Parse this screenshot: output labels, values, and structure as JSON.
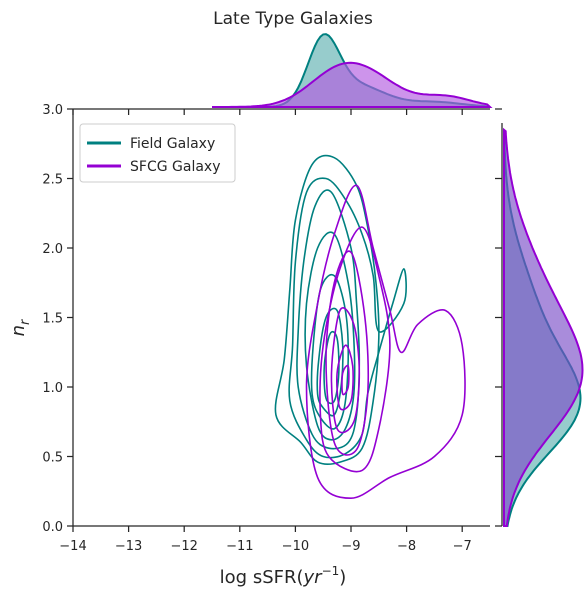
{
  "chart_data": {
    "type": "kde-joint",
    "title": "Late Type Galaxies",
    "xlabel_main": "log sSFR(",
    "xlabel_unit": "yr",
    "xlabel_exp": "−1",
    "xlabel_close": ")",
    "ylabel_base": "n",
    "ylabel_sub": "r",
    "xlim": [
      -14,
      -6.5
    ],
    "ylim": [
      0,
      3
    ],
    "xticks": [
      "−14",
      "−13",
      "−12",
      "−11",
      "−10",
      "−9",
      "−8",
      "−7"
    ],
    "xtick_values": [
      -14,
      -13,
      -12,
      -11,
      -10,
      -9,
      -8,
      -7
    ],
    "yticks": [
      "0.0",
      "0.5",
      "1.0",
      "1.5",
      "2.0",
      "2.5",
      "3.0"
    ],
    "ytick_values": [
      0,
      0.5,
      1,
      1.5,
      2,
      2.5,
      3
    ],
    "legend": {
      "placement": "upper-left",
      "entries": [
        "Field Galaxy",
        "SFCG Galaxy"
      ]
    },
    "colors": {
      "field": "#008080",
      "sfcg": "#9400D3",
      "field_fill": "#5fb0b0",
      "sfcg_fill": "#7b4fc8"
    },
    "series": [
      {
        "name": "Field Galaxy",
        "color": "#008080",
        "contours": [
          [
            [
              -9.9,
              0.6
            ],
            [
              -9.6,
              0.46
            ],
            [
              -9.2,
              0.46
            ],
            [
              -8.8,
              0.56
            ],
            [
              -8.6,
              0.9
            ],
            [
              -8.5,
              1.35
            ],
            [
              -8.55,
              1.75
            ],
            [
              -8.7,
              2.15
            ],
            [
              -8.9,
              2.45
            ],
            [
              -9.3,
              2.65
            ],
            [
              -9.7,
              2.6
            ],
            [
              -10,
              2.2
            ],
            [
              -10.1,
              1.7
            ],
            [
              -10.2,
              1.2
            ],
            [
              -10.35,
              0.8
            ]
          ],
          [
            [
              -9.8,
              0.62
            ],
            [
              -9.5,
              0.5
            ],
            [
              -9.1,
              0.52
            ],
            [
              -8.8,
              0.66
            ],
            [
              -8.7,
              0.95
            ],
            [
              -8.5,
              1.25
            ],
            [
              -8.25,
              1.6
            ],
            [
              -8.05,
              1.85
            ],
            [
              -8.05,
              1.6
            ],
            [
              -8.5,
              1.4
            ],
            [
              -8.6,
              1.8
            ],
            [
              -8.8,
              2.1
            ],
            [
              -9.1,
              2.35
            ],
            [
              -9.45,
              2.5
            ],
            [
              -9.8,
              2.4
            ],
            [
              -10,
              1.9
            ],
            [
              -10.05,
              1.3
            ],
            [
              -10.1,
              0.9
            ]
          ],
          [
            [
              -9.7,
              0.66
            ],
            [
              -9.4,
              0.56
            ],
            [
              -9.05,
              0.6
            ],
            [
              -8.9,
              0.8
            ],
            [
              -8.85,
              1.2
            ],
            [
              -8.9,
              1.6
            ],
            [
              -9,
              2
            ],
            [
              -9.35,
              2.4
            ],
            [
              -9.65,
              2.3
            ],
            [
              -9.85,
              1.9
            ],
            [
              -9.95,
              1.4
            ],
            [
              -9.95,
              1.0
            ]
          ],
          [
            [
              -9.6,
              0.72
            ],
            [
              -9.35,
              0.62
            ],
            [
              -9.1,
              0.7
            ],
            [
              -8.95,
              0.95
            ],
            [
              -8.95,
              1.35
            ],
            [
              -9.05,
              1.75
            ],
            [
              -9.3,
              2.1
            ],
            [
              -9.6,
              2.0
            ],
            [
              -9.8,
              1.6
            ],
            [
              -9.8,
              1.15
            ]
          ],
          [
            [
              -9.55,
              0.78
            ],
            [
              -9.3,
              0.7
            ],
            [
              -9.12,
              0.85
            ],
            [
              -9.05,
              1.2
            ],
            [
              -9.1,
              1.55
            ],
            [
              -9.3,
              1.8
            ],
            [
              -9.55,
              1.7
            ],
            [
              -9.68,
              1.3
            ],
            [
              -9.7,
              0.95
            ]
          ],
          [
            [
              -9.5,
              0.85
            ],
            [
              -9.3,
              0.8
            ],
            [
              -9.18,
              1.0
            ],
            [
              -9.15,
              1.3
            ],
            [
              -9.25,
              1.55
            ],
            [
              -9.45,
              1.5
            ],
            [
              -9.58,
              1.2
            ],
            [
              -9.6,
              0.95
            ]
          ],
          [
            [
              -9.45,
              0.92
            ],
            [
              -9.3,
              0.9
            ],
            [
              -9.22,
              1.1
            ],
            [
              -9.25,
              1.35
            ],
            [
              -9.38,
              1.38
            ],
            [
              -9.48,
              1.15
            ]
          ]
        ]
      },
      {
        "name": "SFCG Galaxy",
        "color": "#9400D3",
        "contours": [
          [
            [
              -9.6,
              0.35
            ],
            [
              -9.0,
              0.2
            ],
            [
              -8.3,
              0.35
            ],
            [
              -7.5,
              0.5
            ],
            [
              -7.0,
              0.8
            ],
            [
              -7.0,
              1.3
            ],
            [
              -7.3,
              1.55
            ],
            [
              -7.8,
              1.45
            ],
            [
              -8.1,
              1.25
            ],
            [
              -8.3,
              1.55
            ],
            [
              -8.6,
              2.0
            ],
            [
              -8.9,
              2.45
            ],
            [
              -9.3,
              2.1
            ],
            [
              -9.6,
              1.6
            ],
            [
              -9.8,
              1.0
            ]
          ],
          [
            [
              -9.4,
              0.5
            ],
            [
              -8.8,
              0.4
            ],
            [
              -8.5,
              0.7
            ],
            [
              -8.3,
              1.3
            ],
            [
              -8.5,
              1.8
            ],
            [
              -8.8,
              2.15
            ],
            [
              -9.2,
              1.85
            ],
            [
              -9.5,
              1.3
            ],
            [
              -9.55,
              0.8
            ]
          ],
          [
            [
              -9.3,
              0.6
            ],
            [
              -8.9,
              0.55
            ],
            [
              -8.7,
              0.95
            ],
            [
              -8.75,
              1.5
            ],
            [
              -9.0,
              1.97
            ],
            [
              -9.3,
              1.75
            ],
            [
              -9.45,
              1.2
            ]
          ],
          [
            [
              -9.25,
              0.7
            ],
            [
              -8.95,
              0.75
            ],
            [
              -8.85,
              1.1
            ],
            [
              -8.95,
              1.45
            ],
            [
              -9.2,
              1.55
            ],
            [
              -9.35,
              1.1
            ]
          ],
          [
            [
              -9.2,
              0.85
            ],
            [
              -9.0,
              0.9
            ],
            [
              -8.97,
              1.15
            ],
            [
              -9.1,
              1.3
            ],
            [
              -9.25,
              1.1
            ]
          ],
          [
            [
              -9.15,
              0.95
            ],
            [
              -9.05,
              1.0
            ],
            [
              -9.05,
              1.15
            ],
            [
              -9.15,
              1.1
            ]
          ]
        ]
      }
    ]
  }
}
